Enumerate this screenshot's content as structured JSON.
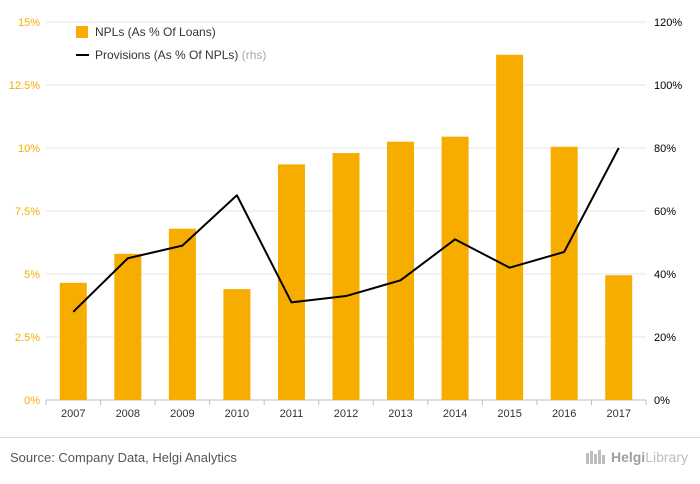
{
  "chart_data": {
    "type": "bar",
    "categories": [
      "2007",
      "2008",
      "2009",
      "2010",
      "2011",
      "2012",
      "2013",
      "2014",
      "2015",
      "2016",
      "2017"
    ],
    "series": [
      {
        "name": "NPLs (As % Of Loans)",
        "type": "bar",
        "axis": "left",
        "values": [
          4.65,
          5.8,
          6.8,
          4.4,
          9.35,
          9.8,
          10.25,
          10.45,
          13.7,
          10.05,
          4.95
        ]
      },
      {
        "name": "Provisions (As % Of NPLs)",
        "type": "line",
        "axis": "right",
        "values": [
          28,
          45,
          49,
          65,
          31,
          33,
          38,
          51,
          42,
          47,
          80
        ]
      }
    ],
    "legend": {
      "bar_label": "NPLs (As % Of Loans)",
      "line_label": "Provisions (As % Of NPLs)",
      "line_suffix": "(rhs)",
      "position": "top-left"
    },
    "y_left": {
      "min": 0,
      "max": 15,
      "ticks": [
        "0%",
        "2.5%",
        "5%",
        "7.5%",
        "10%",
        "12.5%",
        "15%"
      ]
    },
    "y_right": {
      "min": 0,
      "max": 120,
      "ticks": [
        "0%",
        "20%",
        "40%",
        "60%",
        "80%",
        "100%",
        "120%"
      ]
    },
    "colors": {
      "bar": "#F7AD00",
      "line": "#000000",
      "left_axis_text": "#F7AD00",
      "right_axis_text": "#000000"
    },
    "grid": true
  },
  "footer": {
    "source": "Source: Company Data, Helgi Analytics"
  },
  "logo": {
    "brand": "Helgi",
    "suffix": "Library"
  }
}
